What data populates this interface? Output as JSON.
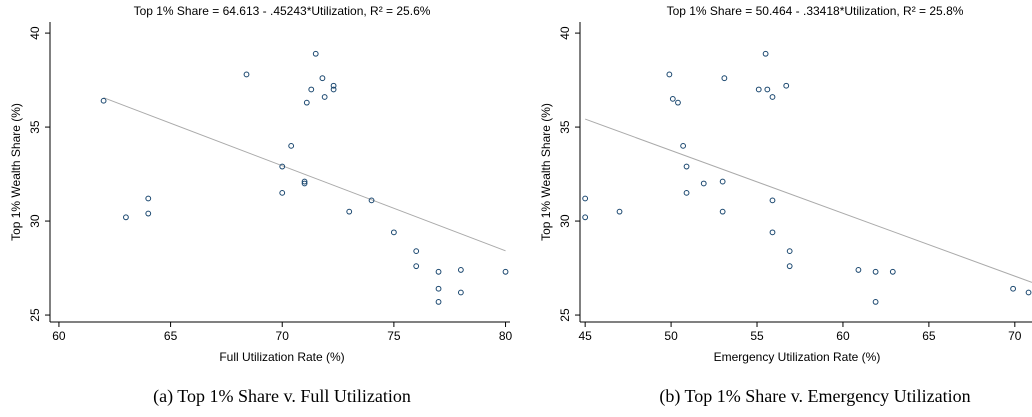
{
  "chart_data": [
    {
      "type": "scatter",
      "title": "Top 1% Share = 64.613 - .45243*Utilization, R² = 25.6%",
      "caption": "(a) Top 1% Share v. Full Utilization",
      "x_label": "Full Utilization Rate (%)",
      "y_label": "Top 1% Wealth Share (%)",
      "color": "#1a476f",
      "fit_color": "#aaaaaa",
      "fit": {
        "intercept": 64.613,
        "slope": -0.45243
      },
      "x": [
        62,
        63,
        64,
        64,
        68.4,
        70.4,
        70,
        70,
        71,
        71,
        71.1,
        71.3,
        71.5,
        71.8,
        71.9,
        72.3,
        72.3,
        73,
        74,
        75,
        76,
        76,
        77,
        77,
        77,
        78,
        78,
        80
      ],
      "values": [
        36.4,
        30.2,
        31.2,
        30.4,
        37.8,
        34.0,
        32.9,
        31.5,
        32.1,
        32.0,
        36.3,
        37.0,
        38.9,
        37.6,
        36.6,
        37.2,
        37.0,
        30.5,
        31.1,
        29.4,
        28.4,
        27.6,
        27.3,
        26.4,
        25.7,
        27.4,
        26.2,
        27.3
      ],
      "xlim": [
        59.6,
        80.2
      ],
      "ylim": [
        24.63,
        40.59
      ],
      "xticks": [
        60,
        65,
        70,
        75,
        80
      ],
      "yticks": [
        25,
        30,
        35,
        40
      ]
    },
    {
      "type": "scatter",
      "title": "Top 1% Share = 50.464 - .33418*Utilization, R² = 25.8%",
      "caption": "(b) Top 1% Share v. Emergency Utilization",
      "x_label": "Emergency Utilization Rate (%)",
      "y_label": "Top 1% Wealth Share (%)",
      "color": "#1a476f",
      "fit_color": "#aaaaaa",
      "fit": {
        "intercept": 50.464,
        "slope": -0.33418
      },
      "x": [
        45,
        45,
        47,
        49.9,
        50.1,
        50.4,
        50.7,
        50.9,
        50.9,
        51.9,
        53,
        53,
        53.1,
        55.1,
        55.5,
        55.6,
        55.9,
        55.9,
        55.9,
        56.7,
        56.9,
        56.9,
        60.9,
        61.9,
        61.9,
        62.9,
        69.9,
        70.8
      ],
      "values": [
        31.2,
        30.2,
        30.5,
        37.8,
        36.5,
        36.3,
        34.0,
        32.9,
        31.5,
        32.0,
        32.1,
        30.5,
        37.6,
        37.0,
        38.9,
        37.0,
        36.6,
        31.1,
        29.4,
        37.2,
        28.4,
        27.6,
        27.4,
        27.3,
        25.7,
        27.3,
        26.4,
        26.2
      ],
      "xlim": [
        44.7,
        71
      ],
      "ylim": [
        24.63,
        40.59
      ],
      "xticks": [
        45,
        50,
        55,
        60,
        65,
        70
      ],
      "yticks": [
        25,
        30,
        35,
        40
      ]
    }
  ]
}
